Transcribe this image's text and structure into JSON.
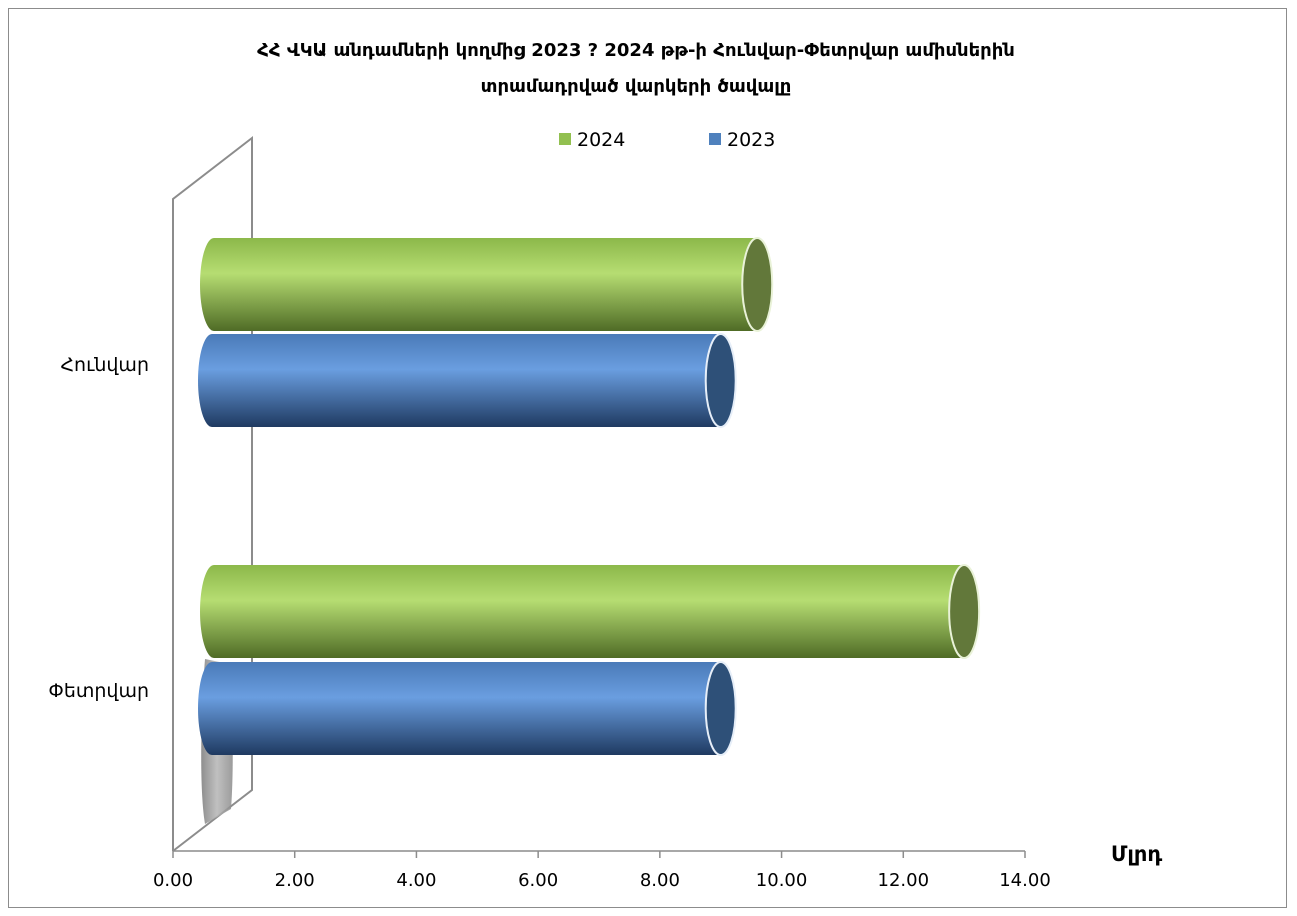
{
  "chart_data": {
    "type": "bar",
    "orientation": "horizontal",
    "title_lines": [
      "ՀՀ ՎԿԱ անդամների կողմից 2023 ? 2024 թթ-ի Հունվար-Փետրվար ամիսներին",
      "տրամադրված վարկերի ծավալը"
    ],
    "categories": [
      "Հունվար",
      "Փետրվար"
    ],
    "series": [
      {
        "name": "2024",
        "values": [
          9.6,
          13.0
        ],
        "color": "#92c050"
      },
      {
        "name": "2023",
        "values": [
          9.0,
          9.0
        ],
        "color": "#4f81bd"
      }
    ],
    "xlim": [
      0,
      14
    ],
    "xticks": [
      "0.00",
      "2.00",
      "4.00",
      "6.00",
      "8.00",
      "10.00",
      "12.00",
      "14.00"
    ],
    "unit_label": "Մլրդ",
    "legend_position": "top",
    "grid": false,
    "style": "3d-cylinder"
  }
}
